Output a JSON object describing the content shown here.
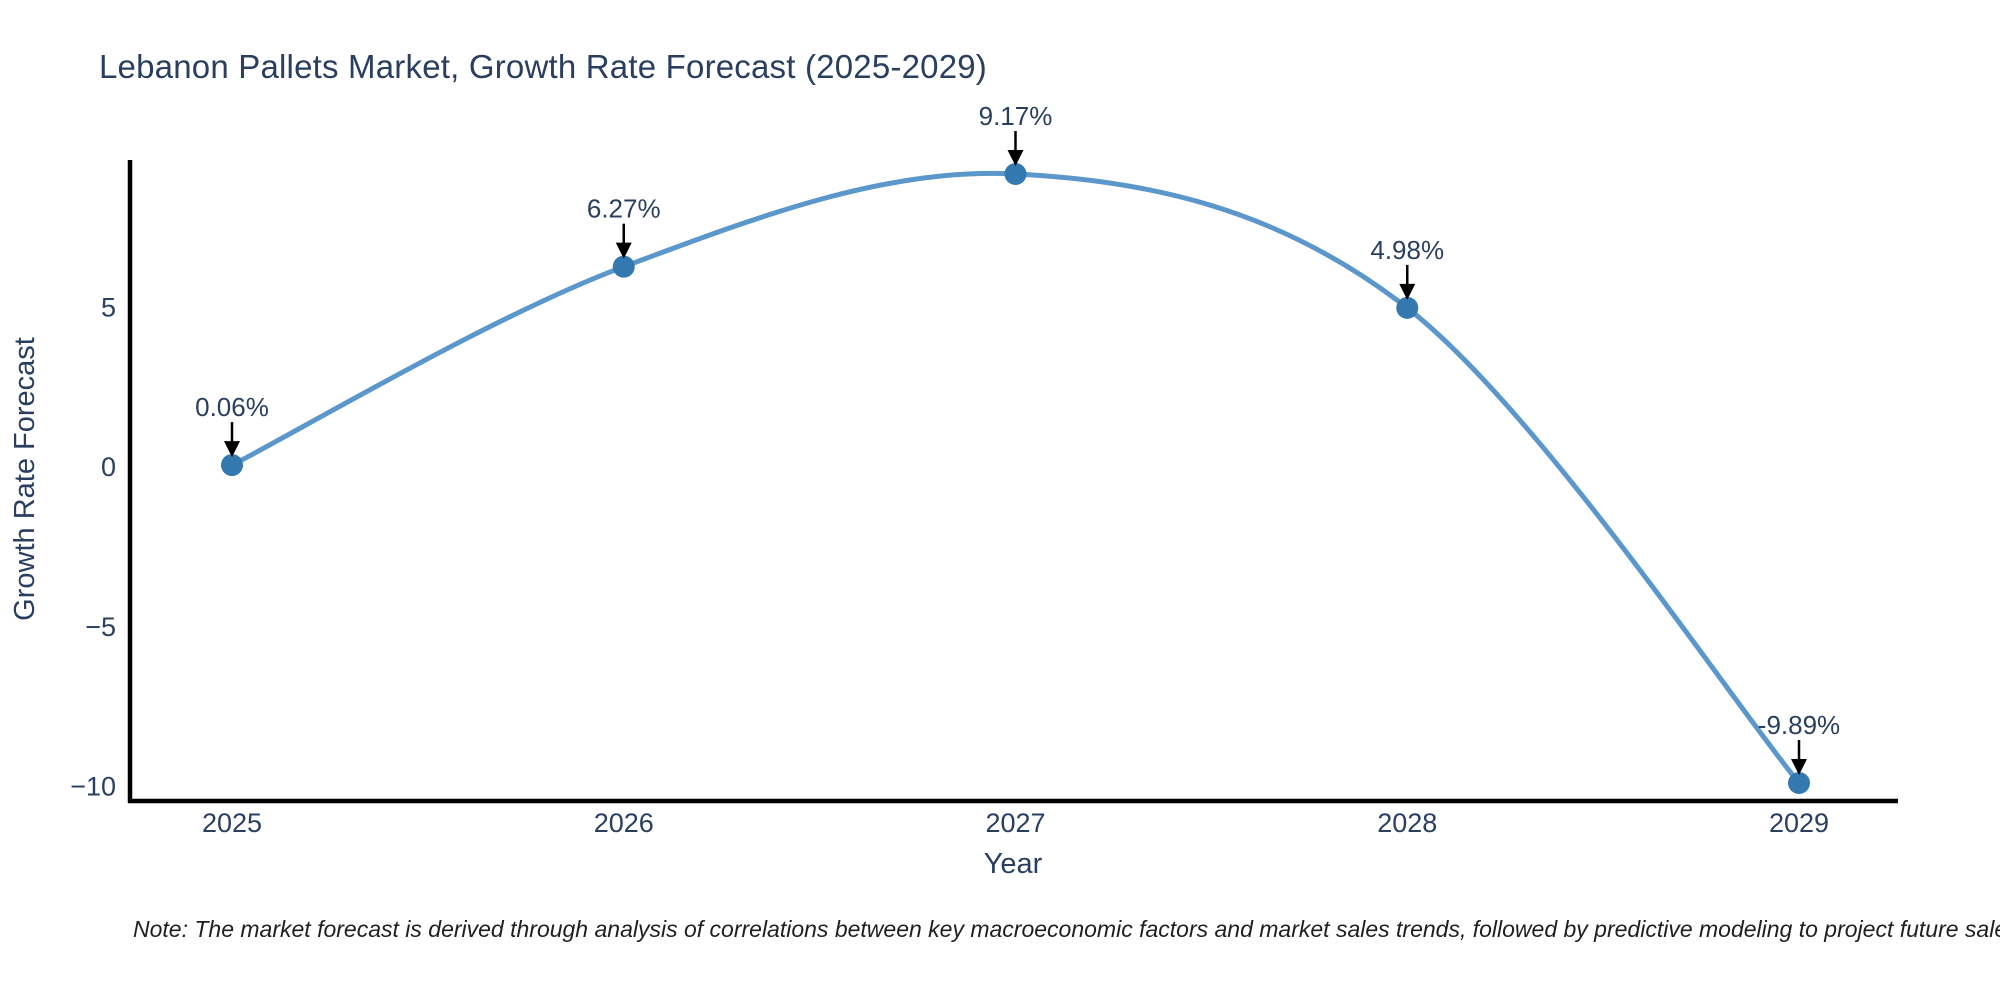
{
  "title": "Lebanon Pallets Market, Growth Rate Forecast (2025-2029)",
  "note": "Note: The market forecast is derived through analysis of correlations between key macroeconomic factors and market sales trends, followed by predictive modeling to project future sales",
  "chart_data": {
    "type": "line",
    "title": "Lebanon Pallets Market, Growth Rate Forecast (2025-2029)",
    "x": [
      2025,
      2026,
      2027,
      2028,
      2029
    ],
    "categories": [
      "2025",
      "2026",
      "2027",
      "2028",
      "2029"
    ],
    "values": [
      0.06,
      6.27,
      9.17,
      4.98,
      -9.89
    ],
    "point_labels": [
      "0.06%",
      "6.27%",
      "9.17%",
      "4.98%",
      "-9.89%"
    ],
    "xlabel": "Year",
    "ylabel": "Growth Rate Forecast",
    "yticks": [
      5,
      0,
      -5,
      -10
    ],
    "ylim": [
      -10.45,
      9.65
    ],
    "xlim": [
      2024.74,
      2029.25
    ],
    "grid": false,
    "legend": false,
    "line_shape": "spline",
    "line_color": "#5b97cb",
    "marker_color": "#3478b0",
    "annotation_arrow_color": "#000000",
    "axis_color": "#000000",
    "tick_color": "#2a3f5f"
  }
}
